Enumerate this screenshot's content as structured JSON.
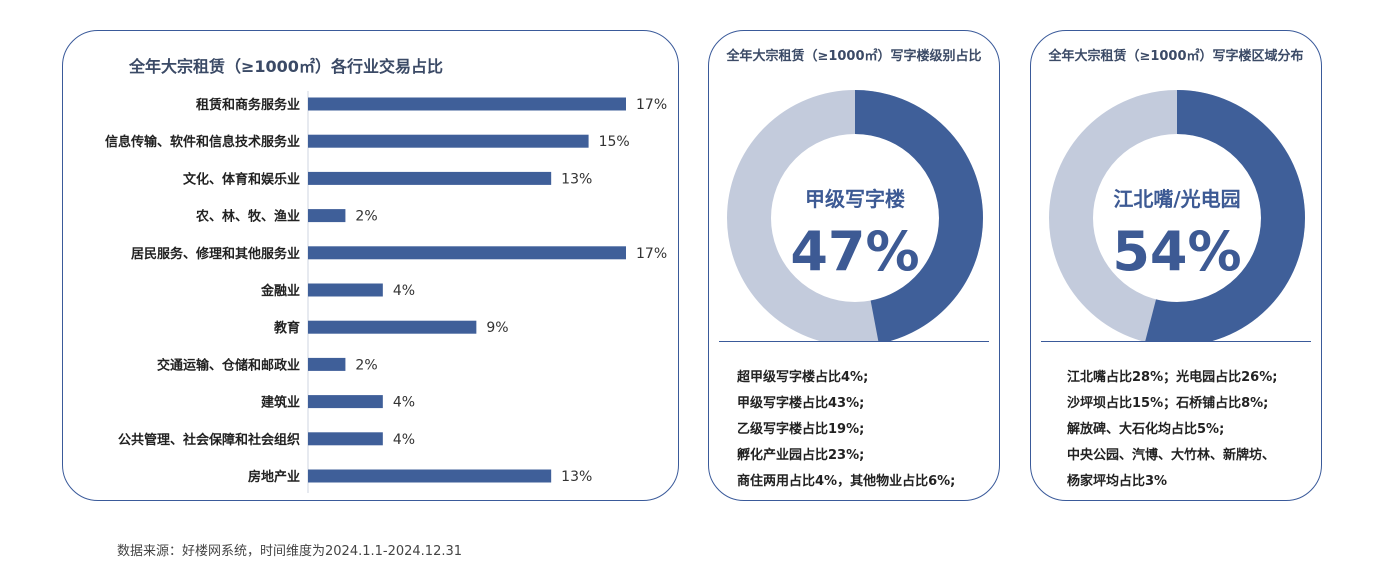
{
  "bar_panel": {
    "title": "全年大宗租赁（≥1000㎡）各行业交易占比"
  },
  "donut_panels": [
    {
      "title": "全年大宗租赁（≥1000㎡）写字楼级别占比",
      "center_label": "甲级写字楼",
      "center_value": "47%",
      "notes": [
        "超甲级写字楼占比4%;",
        "甲级写字楼占比43%;",
        "乙级写字楼占比19%;",
        "孵化产业园占比23%;",
        "商住两用占比4%，其他物业占比6%;"
      ]
    },
    {
      "title": "全年大宗租赁（≥1000㎡）写字楼区域分布",
      "center_label": "江北嘴/光电园",
      "center_value": "54%",
      "notes": [
        "江北嘴占比28%；光电园占比26%;",
        "沙坪坝占比15%；石桥铺占比8%;",
        "解放碑、大石化均占比5%;",
        "中央公园、汽博、大竹林、新牌坊、",
        "杨家坪均占比3%"
      ]
    }
  ],
  "source": "数据来源：好楼网系统，时间维度为2024.1.1-2024.12.31",
  "colors": {
    "bar": "#3f5f99",
    "donut_main": "#3f5f99",
    "donut_rest": "#c3cbdc",
    "border": "#3a5a9a"
  },
  "chart_data": [
    {
      "type": "bar",
      "orientation": "horizontal",
      "title": "全年大宗租赁（≥1000㎡）各行业交易占比",
      "categories": [
        "租赁和商务服务业",
        "信息传输、软件和信息技术服务业",
        "文化、体育和娱乐业",
        "农、林、牧、渔业",
        "居民服务、修理和其他服务业",
        "金融业",
        "教育",
        "交通运输、仓储和邮政业",
        "建筑业",
        "公共管理、社会保障和社会组织",
        "房地产业"
      ],
      "values": [
        17,
        15,
        13,
        2,
        17,
        4,
        9,
        2,
        4,
        4,
        13
      ],
      "value_labels": [
        "17%",
        "15%",
        "13%",
        "2%",
        "17%",
        "4%",
        "9%",
        "2%",
        "4%",
        "4%",
        "13%"
      ],
      "xlim": [
        0,
        17
      ]
    },
    {
      "type": "pie",
      "style": "donut",
      "title": "全年大宗租赁（≥1000㎡）写字楼级别占比",
      "values": [
        47,
        53
      ]
    },
    {
      "type": "pie",
      "style": "donut",
      "title": "全年大宗租赁（≥1000㎡）写字楼区域分布",
      "values": [
        54,
        46
      ]
    }
  ]
}
